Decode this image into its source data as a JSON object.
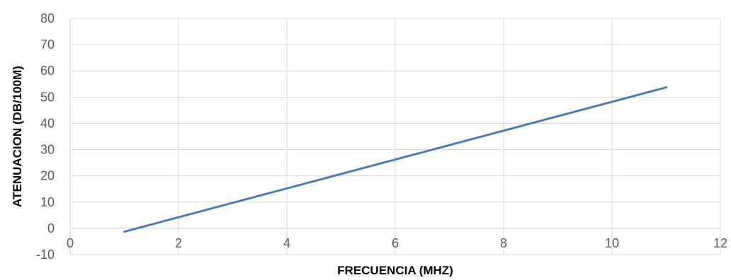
{
  "chart_data": {
    "type": "line",
    "title": "",
    "xlabel": "FRECUENCIA (MHZ)",
    "ylabel": "ATENUACION (DB/100M)",
    "xlim": [
      0,
      12
    ],
    "ylim": [
      -10,
      80
    ],
    "xticks": [
      0,
      2,
      4,
      6,
      8,
      10,
      12
    ],
    "yticks": [
      -10,
      0,
      10,
      20,
      30,
      40,
      50,
      60,
      70,
      80
    ],
    "grid": true,
    "series": [
      {
        "x": [
          1,
          11
        ],
        "y": [
          -1.3,
          53.7
        ],
        "color": "#4a7ebb"
      }
    ],
    "colors": {
      "line": "#4a7ebb",
      "grid": "#d9d9d9",
      "tick_text": "#595959",
      "axis_title": "#000000"
    }
  }
}
